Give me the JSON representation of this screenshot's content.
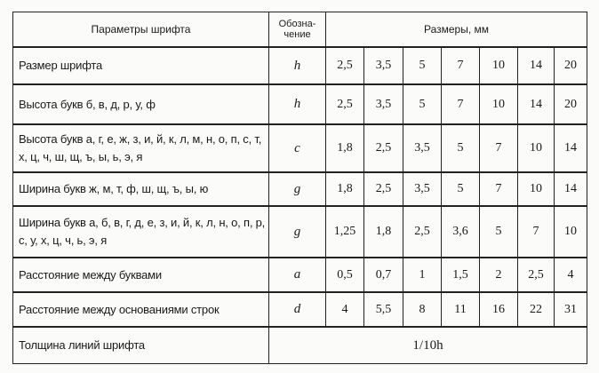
{
  "table": {
    "headers": {
      "param": "Параметры шрифта",
      "symbol": "Обозна-\nчение",
      "sizes": "Размеры, мм"
    },
    "rows": [
      {
        "param": "Размер шрифта",
        "symbol": "h",
        "values": [
          "2,5",
          "3,5",
          "5",
          "7",
          "10",
          "14",
          "20"
        ]
      },
      {
        "param": "Высота букв б, в, д, р, у, ф",
        "symbol": "h",
        "values": [
          "2,5",
          "3,5",
          "5",
          "7",
          "10",
          "14",
          "20"
        ]
      },
      {
        "param": "Высота букв а, г, е, ж, з, и, й, к, л, м, н, о, п, с, т, х, ц, ч, ш, щ, ъ, ы, ь, э, я",
        "symbol": "c",
        "values": [
          "1,8",
          "2,5",
          "3,5",
          "5",
          "7",
          "10",
          "14"
        ]
      },
      {
        "param": "Ширина букв ж, м, т, ф, ш, щ, ъ, ы, ю",
        "symbol": "g",
        "values": [
          "1,8",
          "2,5",
          "3,5",
          "5",
          "7",
          "10",
          "14"
        ]
      },
      {
        "param": "Ширина букв а, б, в, г, д, е, з, и, й, к, л, н, о, п, р, с, у, х, ц, ч, ь, э, я",
        "symbol": "g",
        "values": [
          "1,25",
          "1,8",
          "2,5",
          "3,6",
          "5",
          "7",
          "10"
        ]
      },
      {
        "param": "Расстояние между буквами",
        "symbol": "a",
        "values": [
          "0,5",
          "0,7",
          "1",
          "1,5",
          "2",
          "2,5",
          "4"
        ]
      },
      {
        "param": "Расстояние между основаниями строк",
        "symbol": "d",
        "values": [
          "4",
          "5,5",
          "8",
          "11",
          "16",
          "22",
          "31"
        ]
      }
    ],
    "last_row": {
      "param": "Толщина линий шрифта",
      "value": "1/10h"
    }
  }
}
